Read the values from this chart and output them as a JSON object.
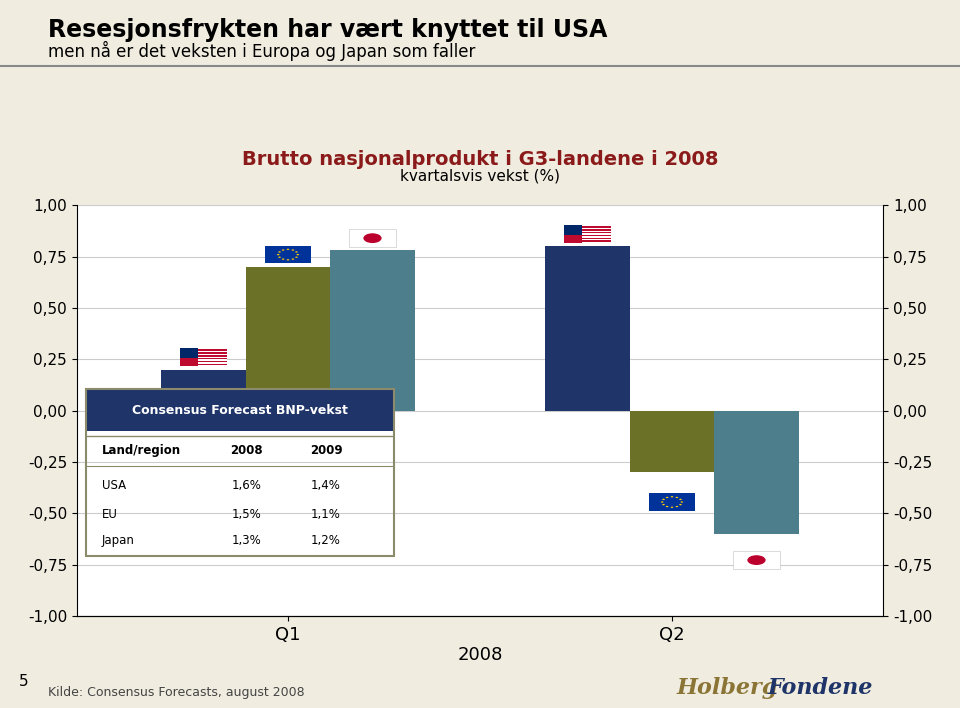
{
  "title": "Brutto nasjonalprodukt i G3-landene i 2008",
  "subtitle": "kvartalsvis vekst (%)",
  "main_title": "Resesjonsfrykten har vært knyttet til USA",
  "main_subtitle": "men nå er det veksten i Europa og Japan som faller",
  "xlabel": "2008",
  "source": "Kilde: Consensus Forecasts, august 2008",
  "page_number": "5",
  "categories": [
    "Q1",
    "Q2"
  ],
  "series": {
    "USA": [
      0.2,
      0.8
    ],
    "EU": [
      0.7,
      -0.3
    ],
    "Japan": [
      0.78,
      -0.6
    ]
  },
  "colors": {
    "USA": "#1F3468",
    "EU": "#6B7228",
    "Japan": "#4D7E8C"
  },
  "ylim": [
    -1.0,
    1.0
  ],
  "yticks": [
    -1.0,
    -0.75,
    -0.5,
    -0.25,
    0.0,
    0.25,
    0.5,
    0.75,
    1.0
  ],
  "ytick_labels": [
    "-1,00",
    "-0,75",
    "-0,50",
    "-0,25",
    "0,00",
    "0,25",
    "0,50",
    "0,75",
    "1,00"
  ],
  "background_color": "#F0EDE0",
  "plot_bg_color": "#FFFFFF",
  "title_color": "#8B1A1A",
  "table_header_bg": "#1F3468",
  "table_header_color": "#FFFFFF",
  "table_bg": "#EDE8D5",
  "table_border_color": "#8B8B6B",
  "holberg_color1": "#8B7536",
  "holberg_color2": "#1F3468",
  "table_data": {
    "header": [
      "Land/region",
      "2008",
      "2009"
    ],
    "rows": [
      [
        "USA",
        "1,6%",
        "1,4%"
      ],
      [
        "EU",
        "1,5%",
        "1,1%"
      ],
      [
        "Japan",
        "1,3%",
        "1,2%"
      ]
    ]
  }
}
